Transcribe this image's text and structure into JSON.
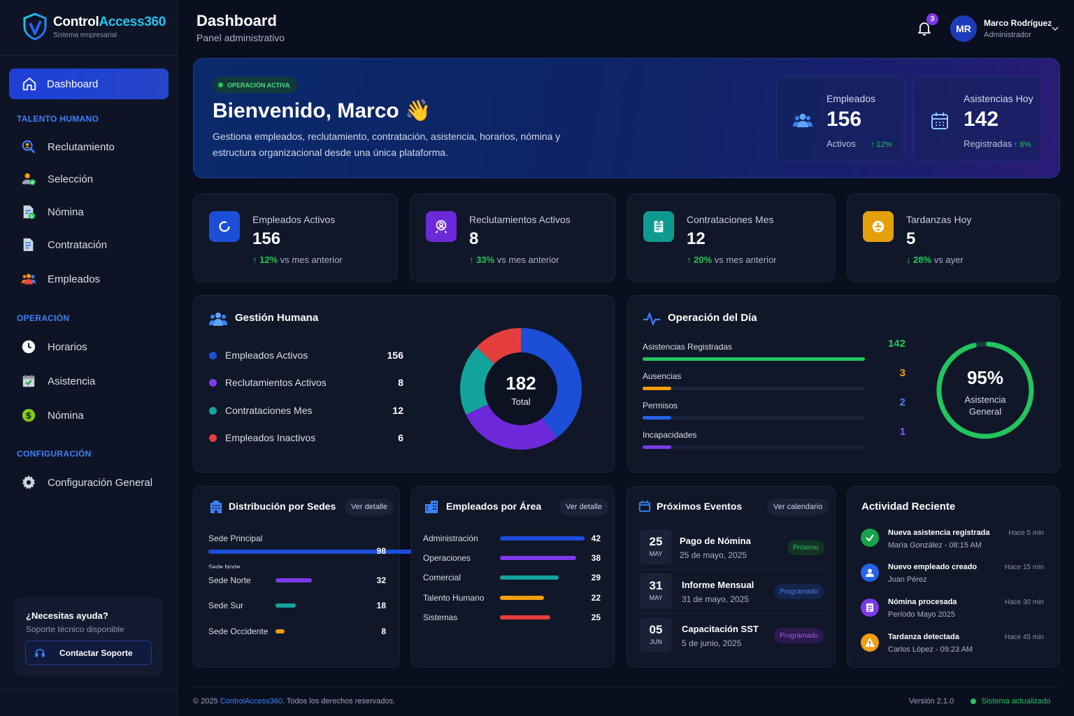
{
  "brand": {
    "name_a": "Control",
    "name_b": "Access360",
    "subtitle": "Sistema empresarial"
  },
  "sidebar": {
    "active": {
      "label": "Dashboard",
      "icon": "home-icon"
    },
    "sections": [
      {
        "title": "TALENTO HUMANO",
        "items": [
          {
            "label": "Reclutamiento",
            "icon": "search-user-icon"
          },
          {
            "label": "Selección",
            "icon": "user-check-icon"
          },
          {
            "label": "Nómina",
            "icon": "payroll-doc-icon"
          },
          {
            "label": "Contratación",
            "icon": "contract-icon"
          },
          {
            "label": "Empleados",
            "icon": "users-icon"
          }
        ]
      },
      {
        "title": "OPERACIÓN",
        "items": [
          {
            "label": "Horarios",
            "icon": "clock-icon"
          },
          {
            "label": "Asistencia",
            "icon": "calendar-check-icon"
          },
          {
            "label": "Nómina",
            "icon": "dollar-icon"
          }
        ]
      },
      {
        "title": "CONFIGURACIÓN",
        "items": [
          {
            "label": "Configuración General",
            "icon": "gear-icon"
          }
        ]
      }
    ],
    "help": {
      "title": "¿Necesitas ayuda?",
      "subtitle": "Soporte técnico disponible",
      "button": "Contactar Soporte"
    }
  },
  "header": {
    "title": "Dashboard",
    "subtitle": "Panel administrativo",
    "notifications": "3",
    "user": {
      "initials": "MR",
      "name": "Marco Rodríguez",
      "role": "Administrador"
    }
  },
  "hero": {
    "status": "OPERACIÓN ACTIVA",
    "greeting": "Bienvenido,  Marco 👋",
    "description": "Gestiona empleados, reclutamiento, contratación, asistencia, horarios, nómina y estructura organizacional desde una única plataforma.",
    "stats": [
      {
        "label": "Empleados",
        "value": "156",
        "sub": "Activos",
        "change": "↑ 12%"
      },
      {
        "label": "Asistencias Hoy",
        "value": "142",
        "sub": "Registradas",
        "change": "↑ 8%"
      }
    ]
  },
  "kpis": [
    {
      "label": "Empleados Activos",
      "value": "156",
      "change": "12%",
      "change_dir": "up",
      "suffix": " vs mes anterior",
      "color": "#1d4ed8"
    },
    {
      "label": "Reclutamientos Activos",
      "value": "8",
      "change": "33%",
      "change_dir": "up",
      "suffix": " vs mes anterior",
      "color": "#6d28d9"
    },
    {
      "label": "Contrataciones Mes",
      "value": "12",
      "change": "20%",
      "change_dir": "up",
      "suffix": " vs mes anterior",
      "color": "#0f9a8e"
    },
    {
      "label": "Tardanzas Hoy",
      "value": "5",
      "change": "28%",
      "change_dir": "down",
      "suffix": " vs ayer",
      "color": "#e3a008"
    }
  ],
  "gestion": {
    "title": "Gestión Humana",
    "items": [
      {
        "label": "Empleados Activos",
        "value": "156",
        "color": "#1d4ed8"
      },
      {
        "label": "Reclutamientos Activos",
        "value": "8",
        "color": "#7c3aed"
      },
      {
        "label": "Contrataciones Mes",
        "value": "12",
        "color": "#14a39a"
      },
      {
        "label": "Empleados Inactivos",
        "value": "6",
        "color": "#e53e3e"
      }
    ],
    "total_value": "182",
    "total_label": "Total"
  },
  "chart_data": {
    "type": "pie",
    "donut": true,
    "categories": [
      "Empleados Activos",
      "Reclutamientos Activos",
      "Contrataciones Mes",
      "Empleados Inactivos"
    ],
    "values": [
      156,
      8,
      12,
      6
    ],
    "colors": [
      "#1d4ed8",
      "#6d28d9",
      "#14a39a",
      "#e53e3e"
    ],
    "visual_share": [
      0.4,
      0.28,
      0.19,
      0.13
    ],
    "center_text": "182 Total"
  },
  "operacion": {
    "title": "Operación del Día",
    "rows": [
      {
        "label": "Asistencias Registradas",
        "value": "142",
        "fraction": 1.0,
        "color": "#22c55e"
      },
      {
        "label": "Ausencias",
        "value": "3",
        "fraction": 0.13,
        "color": "#f59e0b"
      },
      {
        "label": "Permisos",
        "value": "2",
        "fraction": 0.13,
        "color": "#2563eb"
      },
      {
        "label": "Incapacidades",
        "value": "1",
        "fraction": 0.13,
        "color": "#7c3aed"
      }
    ],
    "gauge": {
      "value": "95%",
      "label_a": "Asistencia",
      "label_b": "General",
      "fraction": 0.95,
      "color": "#22c55e"
    }
  },
  "sedes": {
    "title": "Distribución por Sedes",
    "button": "Ver detalle",
    "rows": [
      {
        "label": "Sede Principal",
        "value": "98",
        "num": 98,
        "color": "#1d4ed8"
      },
      {
        "label": "Sede Norte",
        "value": "32",
        "num": 32,
        "color": "#7c3aed"
      },
      {
        "label": "Sede Sur",
        "value": "18",
        "num": 18,
        "color": "#14a39a"
      },
      {
        "label": "Sede Occidente",
        "value": "8",
        "num": 8,
        "color": "#f59e0b"
      }
    ],
    "ghost_label": "Sede Norte"
  },
  "areas": {
    "title": "Empleados por Área",
    "button": "Ver detalle",
    "rows": [
      {
        "label": "Administración",
        "value": "42",
        "num": 42,
        "color": "#1d4ed8"
      },
      {
        "label": "Operaciones",
        "value": "38",
        "num": 38,
        "color": "#7c3aed"
      },
      {
        "label": "Comercial",
        "value": "29",
        "num": 29,
        "color": "#14a39a"
      },
      {
        "label": "Talento Humano",
        "value": "22",
        "num": 22,
        "color": "#f59e0b"
      },
      {
        "label": "Sistemas",
        "value": "25",
        "num": 25,
        "color": "#e53e3e"
      }
    ]
  },
  "eventos": {
    "title": "Próximos Eventos",
    "button": "Ver calendario",
    "items": [
      {
        "day": "25",
        "month": "MAY",
        "title": "Pago de Nómina",
        "date": "25 de mayo, 2025",
        "tag": "Próximo",
        "tag_color": "#22c55e",
        "tag_bg": "#123325"
      },
      {
        "day": "31",
        "month": "MAY",
        "title": "Informe Mensual",
        "date": "31 de mayo, 2025",
        "tag": "Programado",
        "tag_color": "#3b82f6",
        "tag_bg": "#15244d"
      },
      {
        "day": "05",
        "month": "JUN",
        "title": "Capacitación SST",
        "date": "5 de junio, 2025",
        "tag": "Programado",
        "tag_color": "#a855f7",
        "tag_bg": "#2a1a4d"
      }
    ]
  },
  "actividad": {
    "title": "Actividad Reciente",
    "items": [
      {
        "title": "Nueva asistencia registrada",
        "sub": "María González - 08:15 AM",
        "time": "Hace 5 min",
        "color": "#16a34a",
        "icon": "check-icon"
      },
      {
        "title": "Nuevo empleado creado",
        "sub": "Juan Pérez",
        "time": "Hace 15 min",
        "color": "#2563eb",
        "icon": "user-icon"
      },
      {
        "title": "Nómina procesada",
        "sub": "Período Mayo 2025",
        "time": "Hace 30 min",
        "color": "#7c3aed",
        "icon": "document-icon"
      },
      {
        "title": "Tardanza detectada",
        "sub": "Carlos López - 09:23 AM",
        "time": "Hace 45 min",
        "color": "#f59e0b",
        "icon": "warning-icon"
      }
    ]
  },
  "footer": {
    "copy_a": "© 2025 ",
    "copy_b": "ControlAccess360",
    "copy_c": ". Todos los derechos reservados.",
    "version": "Versión 2.1.0",
    "status": "Sistema actualizado"
  }
}
